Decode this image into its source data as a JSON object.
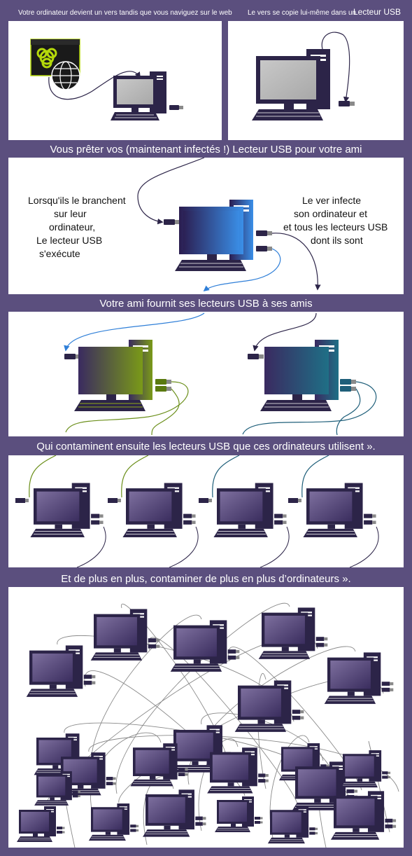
{
  "step1": {
    "caption_left": "Votre ordinateur devient un vers tandis que vous naviguez sur le web",
    "caption_mid": "Le vers se copie lui-même dans un",
    "caption_right": "Lecteur USB"
  },
  "step2": {
    "caption": "Vous prêter vos (maintenant infectés !) Lecteur USB pour votre ami",
    "left_lines": [
      "Lorsqu'ils le branchent",
      "sur leur",
      "ordinateur,",
      "Le lecteur USB",
      "s'exécute"
    ],
    "right_lines": [
      "Le ver infecte",
      "son ordinateur et",
      "et tous les lecteurs USB",
      "dont ils sont"
    ]
  },
  "step3": {
    "caption": "Votre ami fournit ses lecteurs USB à ses amis"
  },
  "step4": {
    "caption": "Qui contaminent ensuite les lecteurs USB que ces ordinateurs utilisent »."
  },
  "step5": {
    "caption": "Et de plus en plus, contaminer de plus en plus d’ordinateurs »."
  },
  "colors": {
    "background": "#5b4f7e",
    "panel": "#ffffff",
    "computer_body": "#2c2448",
    "blue_accent": "#2f7fd8",
    "green_accent": "#6b8f1a",
    "teal_accent": "#1f5f7a",
    "virus_green": "#b5d90a"
  },
  "icons": {
    "virus": "biohazard-icon",
    "web": "globe-icon",
    "usb": "usb-drive-icon",
    "computer": "computer-icon"
  }
}
